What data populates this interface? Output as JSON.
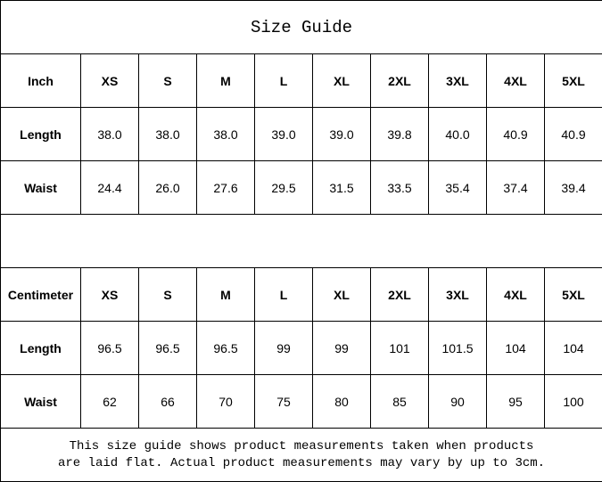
{
  "title": "Size Guide",
  "inch": {
    "header": [
      "Inch",
      "XS",
      "S",
      "M",
      "L",
      "XL",
      "2XL",
      "3XL",
      "4XL",
      "5XL"
    ],
    "rows": [
      [
        "Length",
        "38.0",
        "38.0",
        "38.0",
        "39.0",
        "39.0",
        "39.8",
        "40.0",
        "40.9",
        "40.9"
      ],
      [
        "Waist",
        "24.4",
        "26.0",
        "27.6",
        "29.5",
        "31.5",
        "33.5",
        "35.4",
        "37.4",
        "39.4"
      ]
    ]
  },
  "cm": {
    "header": [
      "Centimeter",
      "XS",
      "S",
      "M",
      "L",
      "XL",
      "2XL",
      "3XL",
      "4XL",
      "5XL"
    ],
    "rows": [
      [
        "Length",
        "96.5",
        "96.5",
        "96.5",
        "99",
        "99",
        "101",
        "101.5",
        "104",
        "104"
      ],
      [
        "Waist",
        "62",
        "66",
        "70",
        "75",
        "80",
        "85",
        "90",
        "95",
        "100"
      ]
    ]
  },
  "note": {
    "line1": "This size guide shows product measurements taken when products",
    "line2": "are laid flat. Actual product measurements may vary by up to 3cm."
  }
}
